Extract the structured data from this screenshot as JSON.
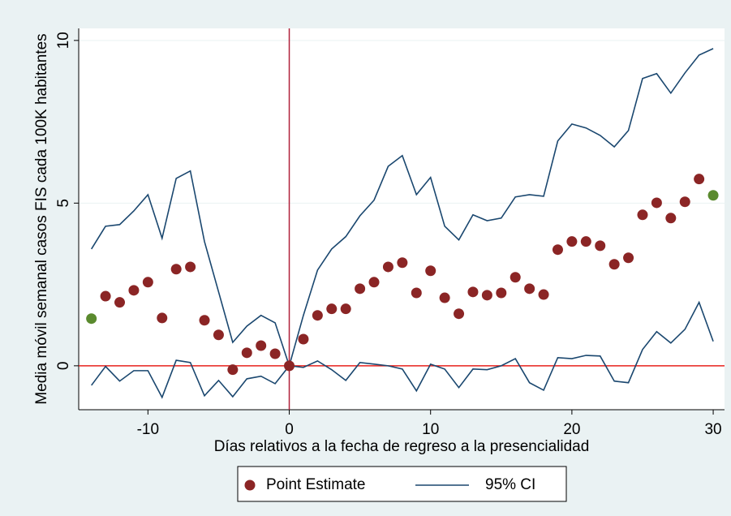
{
  "chart_data": {
    "type": "scatter",
    "y_label": "Media móvil semanal casos FIS cada 100K habitantes",
    "x_label": "Días relativos a la fecha de regreso a la presencialidad",
    "x": [
      -14,
      -13,
      -12,
      -11,
      -10,
      -9,
      -8,
      -7,
      -6,
      -5,
      -4,
      -3,
      -2,
      -1,
      0,
      1,
      2,
      3,
      4,
      5,
      6,
      7,
      8,
      9,
      10,
      11,
      12,
      13,
      14,
      15,
      16,
      17,
      18,
      19,
      20,
      21,
      22,
      23,
      24,
      25,
      26,
      27,
      28,
      29,
      30
    ],
    "series": [
      {
        "name": "Point Estimate",
        "color": "#8b2525",
        "colors": [
          "#5a8a2e",
          "#8b2525",
          "#8b2525",
          "#8b2525",
          "#8b2525",
          "#8b2525",
          "#8b2525",
          "#8b2525",
          "#8b2525",
          "#8b2525",
          "#8b2525",
          "#8b2525",
          "#8b2525",
          "#8b2525",
          "#8b2525",
          "#8b2525",
          "#8b2525",
          "#8b2525",
          "#8b2525",
          "#8b2525",
          "#8b2525",
          "#8b2525",
          "#8b2525",
          "#8b2525",
          "#8b2525",
          "#8b2525",
          "#8b2525",
          "#8b2525",
          "#8b2525",
          "#8b2525",
          "#8b2525",
          "#8b2525",
          "#8b2525",
          "#8b2525",
          "#8b2525",
          "#8b2525",
          "#8b2525",
          "#8b2525",
          "#8b2525",
          "#8b2525",
          "#8b2525",
          "#8b2525",
          "#8b2525",
          "#8b2525",
          "#5a8a2e"
        ],
        "values": [
          1.45,
          2.14,
          1.95,
          2.32,
          2.57,
          1.47,
          2.97,
          3.04,
          1.4,
          0.95,
          -0.12,
          0.4,
          0.62,
          0.37,
          0,
          0.82,
          1.55,
          1.75,
          1.75,
          2.37,
          2.57,
          3.04,
          3.17,
          2.24,
          2.92,
          2.09,
          1.6,
          2.27,
          2.17,
          2.24,
          2.72,
          2.37,
          2.19,
          3.57,
          3.82,
          3.82,
          3.69,
          3.12,
          3.32,
          4.64,
          5.01,
          4.54,
          5.04,
          5.74,
          5.24
        ]
      }
    ],
    "ci": {
      "name": "95% CI",
      "color": "#1a476f",
      "upper": [
        3.59,
        4.29,
        4.34,
        4.76,
        5.26,
        3.92,
        5.76,
        5.99,
        3.82,
        2.27,
        0.72,
        1.22,
        1.55,
        1.32,
        0,
        1.55,
        2.94,
        3.59,
        3.97,
        4.61,
        5.09,
        6.13,
        6.46,
        5.26,
        5.79,
        4.29,
        3.87,
        4.64,
        4.46,
        4.54,
        5.19,
        5.26,
        5.21,
        6.91,
        7.43,
        7.31,
        7.08,
        6.73,
        7.23,
        8.83,
        8.98,
        8.38,
        9.0,
        9.55,
        9.75
      ],
      "lower": [
        -0.6,
        -0.02,
        -0.47,
        -0.15,
        -0.15,
        -0.97,
        0.17,
        0.1,
        -0.92,
        -0.45,
        -0.95,
        -0.4,
        -0.32,
        -0.55,
        0,
        -0.05,
        0.15,
        -0.12,
        -0.45,
        0.1,
        0.05,
        0,
        -0.1,
        -0.77,
        0.05,
        -0.1,
        -0.67,
        -0.1,
        -0.12,
        0,
        0.22,
        -0.52,
        -0.75,
        0.25,
        0.22,
        0.32,
        0.3,
        -0.47,
        -0.52,
        0.5,
        1.05,
        0.7,
        1.12,
        1.95,
        0.75
      ]
    },
    "xlim": [
      -14.9,
      30.8
    ],
    "ylim": [
      -1.35,
      10.37
    ],
    "xticks": [
      -10,
      0,
      10,
      20,
      30
    ],
    "yticks": [
      0,
      5,
      10
    ],
    "grid": true,
    "xline": {
      "value": 0,
      "color": "#b0203a"
    },
    "yline": {
      "value": 0,
      "color": "#e8201c"
    },
    "legend": "bottom"
  }
}
